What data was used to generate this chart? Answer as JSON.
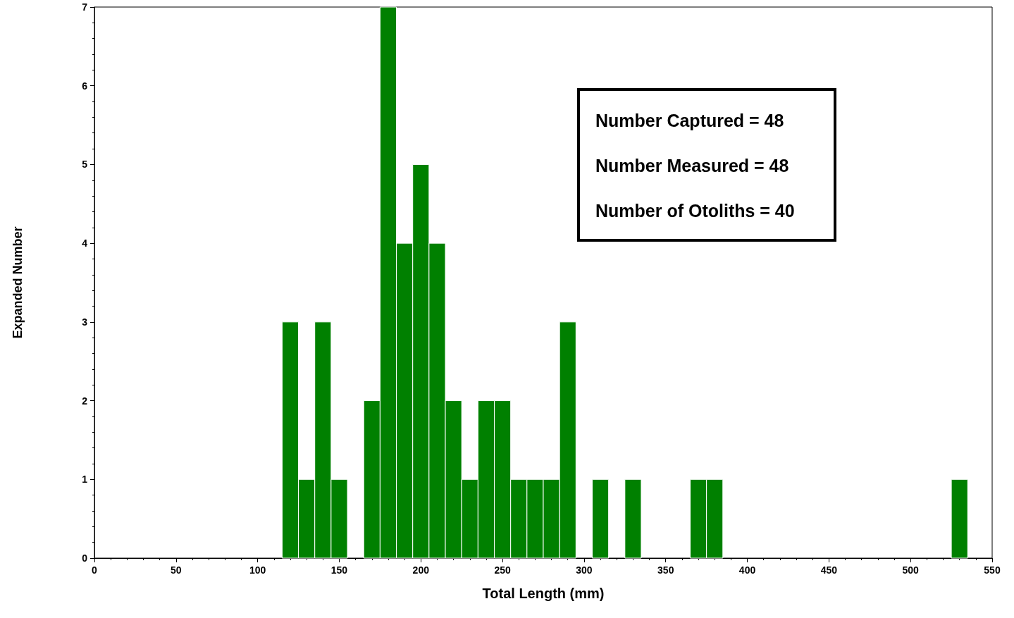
{
  "chart_data": {
    "type": "histogram",
    "xlabel": "Total Length (mm)",
    "ylabel": "Expanded Number",
    "annotations": [
      "Number Captured = 48",
      "Number Measured = 48",
      "Number of Otoliths = 40"
    ],
    "bins": [
      115,
      125,
      135,
      145,
      155,
      165,
      175,
      185,
      195,
      205,
      215,
      225,
      235,
      245,
      255,
      265,
      275,
      285,
      295,
      305,
      315,
      325,
      335,
      345,
      355,
      365,
      375,
      385,
      395,
      405,
      415,
      425,
      435,
      445,
      455,
      465,
      475,
      485,
      495,
      505,
      515,
      525,
      535
    ],
    "values": [
      3,
      1,
      3,
      1,
      0,
      2,
      7,
      4,
      5,
      4,
      2,
      1,
      2,
      2,
      1,
      1,
      1,
      3,
      0,
      1,
      0,
      1,
      0,
      0,
      0,
      1,
      1,
      0,
      0,
      0,
      0,
      0,
      0,
      0,
      0,
      0,
      0,
      0,
      0,
      0,
      0,
      1
    ],
    "color": "#008000",
    "xlim": [
      0,
      550
    ],
    "xticks": [
      0,
      50,
      100,
      150,
      200,
      250,
      300,
      350,
      400,
      450,
      500,
      550
    ],
    "ylim": [
      0,
      7
    ],
    "yticks": [
      0,
      1,
      2,
      3,
      4,
      5,
      6,
      7
    ]
  }
}
